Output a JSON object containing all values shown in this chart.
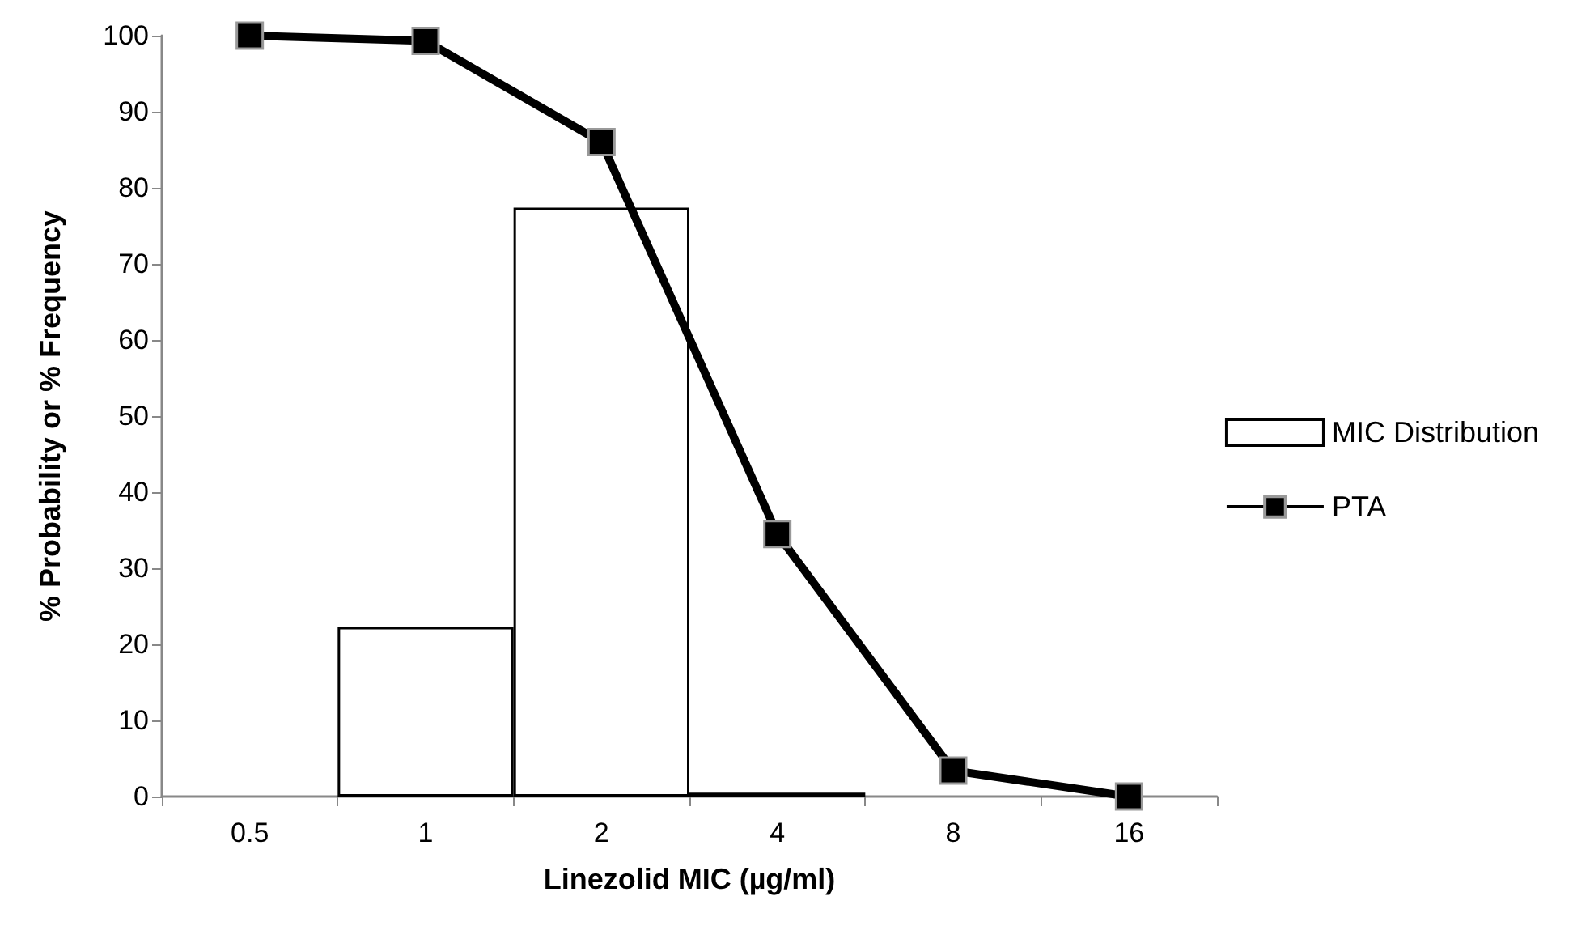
{
  "chart_data": {
    "type": "bar",
    "xlabel": "Linezolid MIC (µg/ml)",
    "ylabel": "% Probability or % Frequency",
    "categories": [
      "0.5",
      "1",
      "2",
      "4",
      "8",
      "16"
    ],
    "series": [
      {
        "name": "MIC Distribution",
        "color": "#ffffff",
        "values": [
          0,
          22.3,
          77.4,
          0.5,
          0,
          0
        ]
      },
      {
        "name": "PTA",
        "type": "line",
        "color": "#000000",
        "values": [
          100,
          99.3,
          86,
          34.5,
          3.4,
          0
        ],
        "marker": "square"
      }
    ],
    "ylim": [
      0,
      100
    ],
    "yticks": [
      0,
      10,
      20,
      30,
      40,
      50,
      60,
      70,
      80,
      90,
      100
    ],
    "grid": false,
    "legend": "right"
  }
}
